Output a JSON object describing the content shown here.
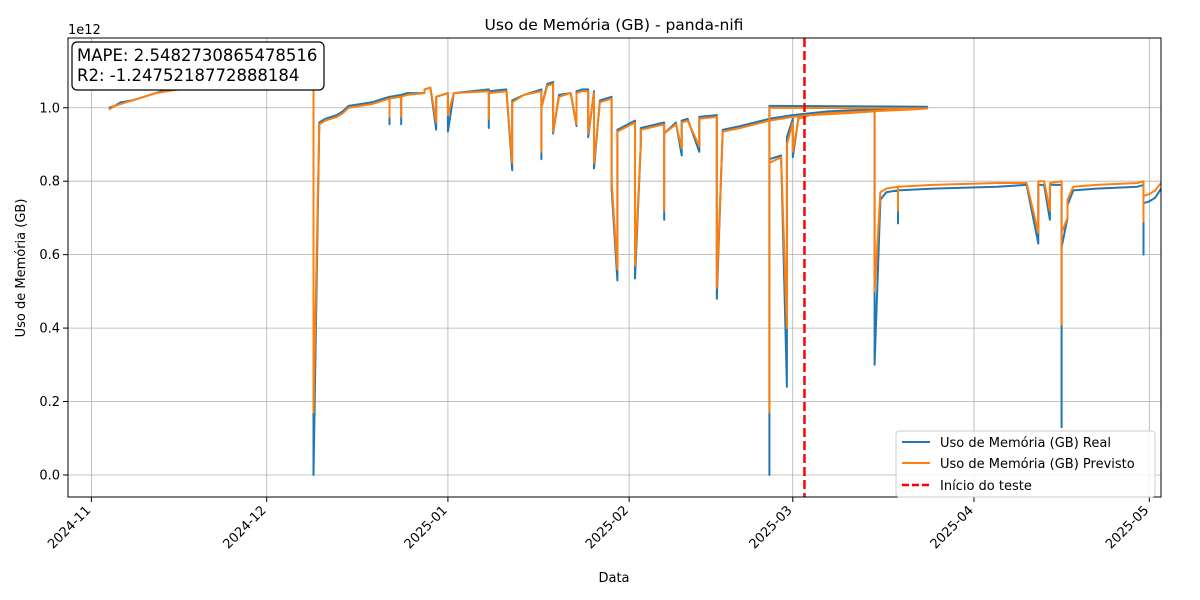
{
  "chart_data": {
    "type": "line",
    "title": "Uso de Memória (GB) - panda-nifi",
    "xlabel": "Data",
    "ylabel": "Uso de Memória (GB)",
    "y_offset_label": "1e12",
    "x_axis_type": "date",
    "xlim": [
      "2024-10-28",
      "2025-05-03"
    ],
    "ylim": [
      -0.06,
      1.19
    ],
    "y_ticks": [
      0.0,
      0.2,
      0.4,
      0.6,
      0.8,
      1.0
    ],
    "y_tick_labels": [
      "0.0",
      "0.2",
      "0.4",
      "0.6",
      "0.8",
      "1.0"
    ],
    "x_ticks": [
      "2024-11-01",
      "2024-12-01",
      "2025-01-01",
      "2025-02-01",
      "2025-03-01",
      "2025-04-01",
      "2025-05-01"
    ],
    "x_tick_labels": [
      "2024-11",
      "2024-12",
      "2025-01",
      "2025-02",
      "2025-03",
      "2025-04",
      "2025-05"
    ],
    "grid": true,
    "legend_position": "lower-right",
    "metrics": {
      "mape": "MAPE: 2.5482730865478516",
      "r2": "R2: -1.2475218772888184"
    },
    "test_start": {
      "label": "Início do teste",
      "date": "2025-03-03",
      "color": "#ff0000"
    },
    "series": [
      {
        "name": "Uso de Memória (GB) Real",
        "color": "#1f77b4",
        "points": [
          [
            "2024-11-04",
            1.0
          ],
          [
            "2024-11-05",
            1.005
          ],
          [
            "2024-11-06",
            1.015
          ],
          [
            "2024-11-08",
            1.02
          ],
          [
            "2024-11-10",
            1.03
          ],
          [
            "2024-11-12",
            1.04
          ],
          [
            "2024-11-14",
            1.05
          ],
          [
            "2024-11-16",
            1.055
          ],
          [
            "2024-11-18",
            1.06
          ],
          [
            "2024-12-09",
            1.06
          ],
          [
            "2024-12-09",
            0.0
          ],
          [
            "2024-12-10",
            0.96
          ],
          [
            "2024-12-11",
            0.97
          ],
          [
            "2024-12-13",
            0.98
          ],
          [
            "2024-12-14",
            0.99
          ],
          [
            "2024-12-15",
            1.005
          ],
          [
            "2024-12-17",
            1.01
          ],
          [
            "2024-12-19",
            1.015
          ],
          [
            "2024-12-20",
            1.02
          ],
          [
            "2024-12-21",
            1.025
          ],
          [
            "2024-12-22",
            1.03
          ],
          [
            "2024-12-22",
            0.955
          ],
          [
            "2024-12-22",
            1.03
          ],
          [
            "2024-12-24",
            1.035
          ],
          [
            "2024-12-24",
            0.955
          ],
          [
            "2024-12-24",
            1.035
          ],
          [
            "2024-12-25",
            1.04
          ],
          [
            "2024-12-28",
            1.04
          ],
          [
            "2024-12-28",
            1.05
          ],
          [
            "2024-12-29",
            1.055
          ],
          [
            "2024-12-30",
            0.94
          ],
          [
            "2024-12-30",
            1.03
          ],
          [
            "2024-12-31",
            1.035
          ],
          [
            "2025-01-01",
            1.04
          ],
          [
            "2025-01-01",
            0.935
          ],
          [
            "2025-01-02",
            1.04
          ],
          [
            "2025-01-08",
            1.05
          ],
          [
            "2025-01-08",
            0.945
          ],
          [
            "2025-01-08",
            1.045
          ],
          [
            "2025-01-11",
            1.05
          ],
          [
            "2025-01-12",
            0.83
          ],
          [
            "2025-01-12",
            1.02
          ],
          [
            "2025-01-14",
            1.035
          ],
          [
            "2025-01-17",
            1.05
          ],
          [
            "2025-01-17",
            0.86
          ],
          [
            "2025-01-17",
            1.0
          ],
          [
            "2025-01-18",
            1.065
          ],
          [
            "2025-01-19",
            1.07
          ],
          [
            "2025-01-19",
            0.93
          ],
          [
            "2025-01-20",
            1.035
          ],
          [
            "2025-01-22",
            1.04
          ],
          [
            "2025-01-23",
            0.95
          ],
          [
            "2025-01-23",
            1.045
          ],
          [
            "2025-01-24",
            1.05
          ],
          [
            "2025-01-25",
            1.05
          ],
          [
            "2025-01-25",
            0.92
          ],
          [
            "2025-01-26",
            1.045
          ],
          [
            "2025-01-26",
            0.835
          ],
          [
            "2025-01-27",
            1.02
          ],
          [
            "2025-01-29",
            1.03
          ],
          [
            "2025-01-29",
            0.78
          ],
          [
            "2025-01-30",
            0.53
          ],
          [
            "2025-01-30",
            0.94
          ],
          [
            "2025-02-02",
            0.965
          ],
          [
            "2025-02-02",
            0.535
          ],
          [
            "2025-02-03",
            0.9
          ],
          [
            "2025-02-03",
            0.945
          ],
          [
            "2025-02-07",
            0.96
          ],
          [
            "2025-02-07",
            0.695
          ],
          [
            "2025-02-07",
            0.93
          ],
          [
            "2025-02-09",
            0.96
          ],
          [
            "2025-02-10",
            0.87
          ],
          [
            "2025-02-10",
            0.965
          ],
          [
            "2025-02-11",
            0.97
          ],
          [
            "2025-02-13",
            0.88
          ],
          [
            "2025-02-13",
            0.975
          ],
          [
            "2025-02-16",
            0.98
          ],
          [
            "2025-02-16",
            0.48
          ],
          [
            "2025-02-17",
            0.93
          ],
          [
            "2025-02-17",
            0.94
          ],
          [
            "2025-02-20",
            0.95
          ],
          [
            "2025-02-25",
            0.97
          ],
          [
            "2025-03-01",
            0.98
          ],
          [
            "2025-03-07",
            0.99
          ],
          [
            "2025-03-14",
            0.995
          ],
          [
            "2025-03-21",
            1.0
          ],
          [
            "2025-03-24",
            1.003
          ],
          [
            "2025-02-25",
            1.005
          ],
          [
            "2025-02-25",
            0.0
          ],
          [
            "2025-02-25",
            0.86
          ],
          [
            "2025-02-27",
            0.87
          ],
          [
            "2025-02-28",
            0.24
          ],
          [
            "2025-02-28",
            0.92
          ],
          [
            "2025-03-01",
            0.97
          ],
          [
            "2025-03-01",
            0.865
          ],
          [
            "2025-03-02",
            0.975
          ],
          [
            "2025-03-04",
            0.985
          ],
          [
            "2025-03-10",
            0.99
          ],
          [
            "2025-03-15",
            0.995
          ],
          [
            "2025-03-15",
            0.3
          ],
          [
            "2025-03-16",
            0.75
          ],
          [
            "2025-03-17",
            0.77
          ],
          [
            "2025-03-19",
            0.775
          ],
          [
            "2025-03-19",
            0.685
          ],
          [
            "2025-03-19",
            0.775
          ],
          [
            "2025-03-25",
            0.78
          ],
          [
            "2025-04-05",
            0.785
          ],
          [
            "2025-04-10",
            0.79
          ],
          [
            "2025-04-12",
            0.63
          ],
          [
            "2025-04-12",
            0.79
          ],
          [
            "2025-04-13",
            0.79
          ],
          [
            "2025-04-14",
            0.695
          ],
          [
            "2025-04-14",
            0.79
          ],
          [
            "2025-04-16",
            0.79
          ],
          [
            "2025-04-16",
            0.13
          ],
          [
            "2025-04-16",
            0.62
          ],
          [
            "2025-04-17",
            0.7
          ],
          [
            "2025-04-17",
            0.735
          ],
          [
            "2025-04-18",
            0.775
          ],
          [
            "2025-04-22",
            0.78
          ],
          [
            "2025-04-29",
            0.785
          ],
          [
            "2025-04-30",
            0.79
          ],
          [
            "2025-04-30",
            0.6
          ],
          [
            "2025-04-30",
            0.74
          ],
          [
            "2025-05-01",
            0.745
          ],
          [
            "2025-05-02",
            0.755
          ],
          [
            "2025-05-03",
            0.78
          ]
        ]
      },
      {
        "name": "Uso de Memória (GB) Previsto",
        "color": "#ff7f0e",
        "points": [
          [
            "2024-11-04",
            0.995
          ],
          [
            "2024-11-05",
            1.005
          ],
          [
            "2024-11-06",
            1.01
          ],
          [
            "2024-11-08",
            1.02
          ],
          [
            "2024-11-10",
            1.03
          ],
          [
            "2024-11-12",
            1.04
          ],
          [
            "2024-11-14",
            1.045
          ],
          [
            "2024-11-16",
            1.05
          ],
          [
            "2024-11-18",
            1.055
          ],
          [
            "2024-12-09",
            1.055
          ],
          [
            "2024-12-09",
            0.17
          ],
          [
            "2024-12-10",
            0.955
          ],
          [
            "2024-12-11",
            0.965
          ],
          [
            "2024-12-13",
            0.975
          ],
          [
            "2024-12-14",
            0.985
          ],
          [
            "2024-12-15",
            1.0
          ],
          [
            "2024-12-17",
            1.005
          ],
          [
            "2024-12-19",
            1.01
          ],
          [
            "2024-12-20",
            1.015
          ],
          [
            "2024-12-21",
            1.02
          ],
          [
            "2024-12-22",
            1.025
          ],
          [
            "2024-12-22",
            0.975
          ],
          [
            "2024-12-22",
            1.025
          ],
          [
            "2024-12-24",
            1.03
          ],
          [
            "2024-12-24",
            0.975
          ],
          [
            "2024-12-24",
            1.03
          ],
          [
            "2024-12-25",
            1.035
          ],
          [
            "2024-12-28",
            1.04
          ],
          [
            "2024-12-28",
            1.05
          ],
          [
            "2024-12-29",
            1.055
          ],
          [
            "2024-12-30",
            0.96
          ],
          [
            "2024-12-30",
            1.03
          ],
          [
            "2024-12-31",
            1.035
          ],
          [
            "2025-01-01",
            1.04
          ],
          [
            "2025-01-01",
            0.98
          ],
          [
            "2025-01-02",
            1.04
          ],
          [
            "2025-01-08",
            1.045
          ],
          [
            "2025-01-08",
            0.97
          ],
          [
            "2025-01-08",
            1.04
          ],
          [
            "2025-01-11",
            1.045
          ],
          [
            "2025-01-12",
            0.85
          ],
          [
            "2025-01-12",
            1.015
          ],
          [
            "2025-01-14",
            1.035
          ],
          [
            "2025-01-17",
            1.045
          ],
          [
            "2025-01-17",
            0.88
          ],
          [
            "2025-01-17",
            1.0
          ],
          [
            "2025-01-18",
            1.06
          ],
          [
            "2025-01-19",
            1.065
          ],
          [
            "2025-01-19",
            0.935
          ],
          [
            "2025-01-20",
            1.03
          ],
          [
            "2025-01-22",
            1.04
          ],
          [
            "2025-01-23",
            0.955
          ],
          [
            "2025-01-23",
            1.04
          ],
          [
            "2025-01-24",
            1.045
          ],
          [
            "2025-01-25",
            1.045
          ],
          [
            "2025-01-25",
            0.93
          ],
          [
            "2025-01-26",
            1.04
          ],
          [
            "2025-01-26",
            0.85
          ],
          [
            "2025-01-27",
            1.015
          ],
          [
            "2025-01-29",
            1.025
          ],
          [
            "2025-01-29",
            0.8
          ],
          [
            "2025-01-30",
            0.56
          ],
          [
            "2025-01-30",
            0.935
          ],
          [
            "2025-02-02",
            0.96
          ],
          [
            "2025-02-02",
            0.57
          ],
          [
            "2025-02-03",
            0.9
          ],
          [
            "2025-02-03",
            0.94
          ],
          [
            "2025-02-07",
            0.955
          ],
          [
            "2025-02-07",
            0.72
          ],
          [
            "2025-02-07",
            0.93
          ],
          [
            "2025-02-09",
            0.955
          ],
          [
            "2025-02-10",
            0.89
          ],
          [
            "2025-02-10",
            0.96
          ],
          [
            "2025-02-11",
            0.965
          ],
          [
            "2025-02-13",
            0.895
          ],
          [
            "2025-02-13",
            0.97
          ],
          [
            "2025-02-16",
            0.975
          ],
          [
            "2025-02-16",
            0.51
          ],
          [
            "2025-02-17",
            0.925
          ],
          [
            "2025-02-17",
            0.935
          ],
          [
            "2025-02-20",
            0.945
          ],
          [
            "2025-02-25",
            0.965
          ],
          [
            "2025-03-01",
            0.975
          ],
          [
            "2025-03-07",
            0.985
          ],
          [
            "2025-03-14",
            0.99
          ],
          [
            "2025-03-21",
            0.995
          ],
          [
            "2025-03-24",
            0.998
          ],
          [
            "2025-02-25",
            1.0
          ],
          [
            "2025-02-25",
            0.17
          ],
          [
            "2025-02-25",
            0.85
          ],
          [
            "2025-02-27",
            0.865
          ],
          [
            "2025-02-28",
            0.4
          ],
          [
            "2025-02-28",
            0.9
          ],
          [
            "2025-03-01",
            0.96
          ],
          [
            "2025-03-01",
            0.88
          ],
          [
            "2025-03-02",
            0.97
          ],
          [
            "2025-03-04",
            0.98
          ],
          [
            "2025-03-10",
            0.985
          ],
          [
            "2025-03-15",
            0.99
          ],
          [
            "2025-03-15",
            0.5
          ],
          [
            "2025-03-16",
            0.77
          ],
          [
            "2025-03-17",
            0.78
          ],
          [
            "2025-03-19",
            0.785
          ],
          [
            "2025-03-19",
            0.72
          ],
          [
            "2025-03-19",
            0.785
          ],
          [
            "2025-03-25",
            0.79
          ],
          [
            "2025-04-05",
            0.795
          ],
          [
            "2025-04-10",
            0.795
          ],
          [
            "2025-04-12",
            0.66
          ],
          [
            "2025-04-12",
            0.8
          ],
          [
            "2025-04-13",
            0.8
          ],
          [
            "2025-04-14",
            0.72
          ],
          [
            "2025-04-14",
            0.795
          ],
          [
            "2025-04-16",
            0.8
          ],
          [
            "2025-04-16",
            0.41
          ],
          [
            "2025-04-16",
            0.66
          ],
          [
            "2025-04-17",
            0.7
          ],
          [
            "2025-04-17",
            0.75
          ],
          [
            "2025-04-18",
            0.785
          ],
          [
            "2025-04-22",
            0.79
          ],
          [
            "2025-04-29",
            0.795
          ],
          [
            "2025-04-30",
            0.8
          ],
          [
            "2025-04-30",
            0.69
          ],
          [
            "2025-04-30",
            0.76
          ],
          [
            "2025-05-01",
            0.765
          ],
          [
            "2025-05-02",
            0.775
          ],
          [
            "2025-05-03",
            0.795
          ]
        ]
      }
    ]
  }
}
